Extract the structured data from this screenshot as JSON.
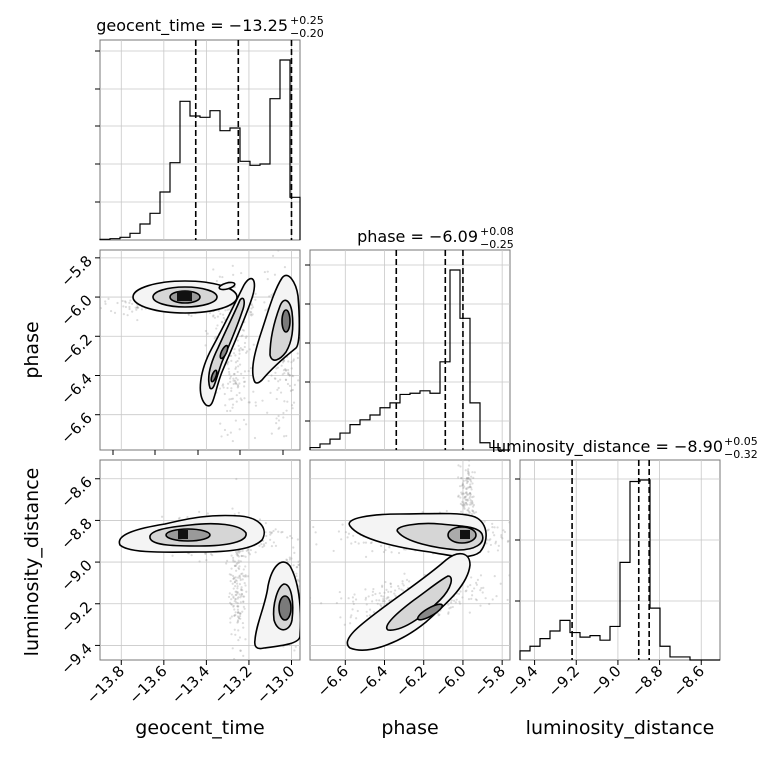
{
  "chart_data": {
    "type": "corner",
    "parameters": [
      "geocent_time",
      "phase",
      "luminosity_distance"
    ],
    "axis_labels": {
      "geocent_time": "geocent_time",
      "phase": "phase",
      "luminosity_distance": "luminosity_distance"
    },
    "ranges": {
      "geocent_time": [
        -13.9,
        -12.96
      ],
      "phase": [
        -6.78,
        -5.76
      ],
      "luminosity_distance": [
        -9.47,
        -8.51
      ]
    },
    "ticks": {
      "geocent_time": [
        -13.8,
        -13.6,
        -13.4,
        -13.2,
        -13.0
      ],
      "phase": [
        -6.6,
        -6.4,
        -6.2,
        -6.0,
        -5.8
      ],
      "luminosity_distance": [
        -9.4,
        -9.2,
        -9.0,
        -8.8,
        -8.6
      ]
    },
    "tick_labels": {
      "geocent_time": [
        "−13.8",
        "−13.6",
        "−13.4",
        "−13.2",
        "−13.0"
      ],
      "phase": [
        "−6.6",
        "−6.4",
        "−6.2",
        "−6.0",
        "−5.8"
      ],
      "luminosity_distance": [
        "−9.4",
        "−9.2",
        "−9.0",
        "−8.8",
        "−8.6"
      ]
    },
    "titles": {
      "geocent_time": {
        "text": "geocent_time = −13.25",
        "plus": "+0.25",
        "minus": "−0.20"
      },
      "phase": {
        "text": "phase = −6.09",
        "plus": "+0.08",
        "minus": "−0.25"
      },
      "luminosity_distance": {
        "text": "luminosity_distance = −8.90",
        "plus": "+0.05",
        "minus": "−0.32"
      }
    },
    "quantiles": {
      "geocent_time": [
        -13.45,
        -13.25,
        -13.0
      ],
      "phase": [
        -6.34,
        -6.09,
        -6.0
      ],
      "luminosity_distance": [
        -9.22,
        -8.9,
        -8.85
      ]
    },
    "histograms": {
      "geocent_time": {
        "bin_edges": [
          -13.9,
          -13.853,
          -13.806,
          -13.759,
          -13.712,
          -13.665,
          -13.618,
          -13.571,
          -13.524,
          -13.477,
          -13.43,
          -13.383,
          -13.336,
          -13.289,
          -13.242,
          -13.195,
          -13.148,
          -13.101,
          -13.054,
          -13.007,
          -12.96
        ],
        "counts": [
          0.5,
          1,
          2,
          5,
          12,
          20,
          36,
          58,
          104,
          93,
          92,
          97,
          82,
          84,
          59,
          56,
          57,
          106,
          135,
          32
        ]
      },
      "phase": {
        "bin_edges": [
          -6.78,
          -6.729,
          -6.678,
          -6.627,
          -6.576,
          -6.525,
          -6.474,
          -6.423,
          -6.372,
          -6.321,
          -6.27,
          -6.219,
          -6.168,
          -6.117,
          -6.066,
          -6.015,
          -5.964,
          -5.913,
          -5.862,
          -5.811,
          -5.76
        ],
        "counts": [
          2,
          5,
          9,
          14,
          21,
          25,
          29,
          35,
          39,
          46,
          47,
          49,
          47,
          73,
          149,
          109,
          39,
          6,
          2,
          0
        ]
      },
      "luminosity_distance": {
        "bin_edges": [
          -9.47,
          -9.422,
          -9.374,
          -9.326,
          -9.278,
          -9.23,
          -9.182,
          -9.134,
          -9.086,
          -9.038,
          -8.99,
          -8.942,
          -8.894,
          -8.846,
          -8.798,
          -8.75,
          -8.702,
          -8.654,
          -8.606,
          -8.558,
          -8.51
        ],
        "counts": [
          6,
          9,
          14,
          19,
          26,
          18,
          15,
          16,
          13,
          22,
          64,
          117,
          118,
          34,
          9,
          2,
          2,
          0,
          0,
          0
        ]
      }
    },
    "contour_levels": [
      0.393,
      0.865,
      0.989
    ],
    "samples": [
      {
        "x": "geocent_time",
        "y": "phase",
        "clusters": [
          {
            "cx": -13.4,
            "cy": -6.03,
            "sx": 0.12,
            "sy": 0.025,
            "rot": 0,
            "weight": 0.4
          },
          {
            "cx": -13.28,
            "cy": -6.28,
            "sx": 0.05,
            "sy": 0.22,
            "rot": 0.35,
            "weight": 0.25
          },
          {
            "cx": -13.05,
            "cy": -6.25,
            "sx": 0.04,
            "sy": 0.2,
            "rot": 0.2,
            "weight": 0.2
          },
          {
            "cx": -13.6,
            "cy": -6.04,
            "sx": 0.15,
            "sy": 0.02,
            "rot": 0,
            "weight": 0.15
          }
        ]
      },
      {
        "x": "geocent_time",
        "y": "luminosity_distance",
        "clusters": [
          {
            "cx": -13.35,
            "cy": -8.88,
            "sx": 0.13,
            "sy": 0.04,
            "rot": 0,
            "weight": 0.5
          },
          {
            "cx": -13.0,
            "cy": -9.2,
            "sx": 0.04,
            "sy": 0.1,
            "rot": 0,
            "weight": 0.3
          },
          {
            "cx": -13.25,
            "cy": -9.1,
            "sx": 0.02,
            "sy": 0.15,
            "rot": 0,
            "weight": 0.2
          }
        ]
      },
      {
        "x": "phase",
        "y": "luminosity_distance",
        "clusters": [
          {
            "cx": -6.2,
            "cy": -8.87,
            "sx": 0.2,
            "sy": 0.04,
            "rot": 0,
            "weight": 0.5
          },
          {
            "cx": -6.25,
            "cy": -9.18,
            "sx": 0.18,
            "sy": 0.05,
            "rot": -0.6,
            "weight": 0.35
          },
          {
            "cx": -5.98,
            "cy": -8.7,
            "sx": 0.02,
            "sy": 0.08,
            "rot": 0,
            "weight": 0.15
          }
        ]
      }
    ]
  }
}
